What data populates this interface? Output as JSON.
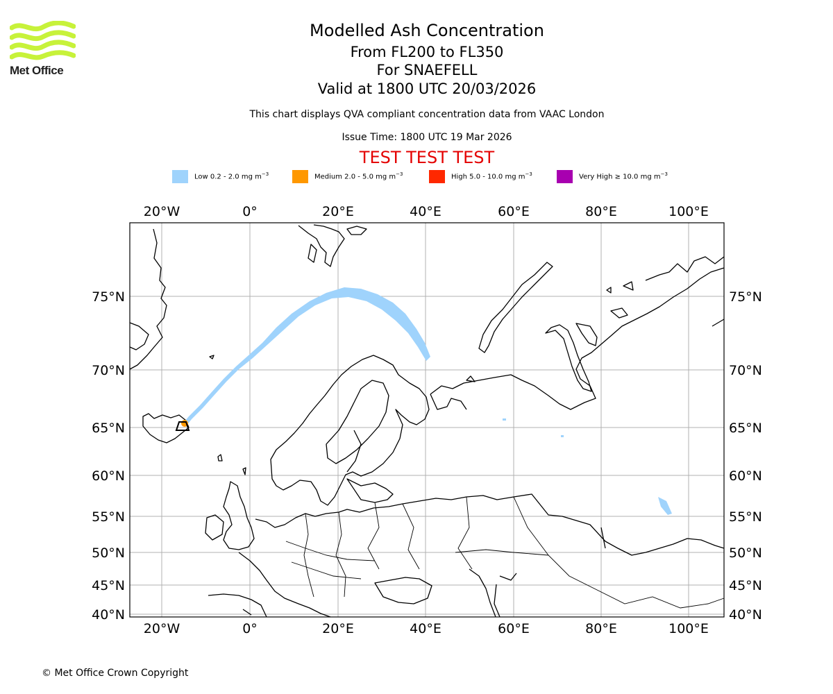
{
  "logo": {
    "text": "Met Office",
    "color": "#c7f23a"
  },
  "header": {
    "title": "Modelled Ash Concentration",
    "level_range": "From FL200 to FL350",
    "volcano": "For SNAEFELL",
    "valid": "Valid at 1800 UTC 20/03/2026",
    "subtitle": "This chart displays QVA compliant concentration data from VAAC London",
    "issue_time": "Issue Time: 1800 UTC 19 Mar 2026",
    "test_text": "TEST TEST TEST",
    "test_color": "#e40000"
  },
  "legend": [
    {
      "label": "Low 0.2 - 2.0 mg m",
      "exp": "−3",
      "color": "#9fd3fc"
    },
    {
      "label": "Medium 2.0 - 5.0 mg m",
      "exp": "−3",
      "color": "#ff9800"
    },
    {
      "label": "High 5.0 - 10.0 mg m",
      "exp": "−3",
      "color": "#ff2800"
    },
    {
      "label": "Very High  ≥  10.0 mg m",
      "exp": "−3",
      "color": "#a800b0"
    }
  ],
  "map": {
    "lon_ticks": [
      "20°W",
      "0°",
      "20°E",
      "40°E",
      "60°E",
      "80°E",
      "100°E"
    ],
    "lat_ticks": [
      "75°N",
      "70°N",
      "65°N",
      "60°N",
      "55°N",
      "50°N",
      "45°N",
      "40°N"
    ],
    "extent": {
      "lon": [
        -27,
        108
      ],
      "lat": [
        39.5,
        80
      ]
    },
    "grid": true,
    "ash_plume": {
      "concentration_class": "Low",
      "centerline_lonlat": [
        [
          -15.2,
          64.8
        ],
        [
          -12,
          66.5
        ],
        [
          -7,
          68.5
        ],
        [
          0,
          70.5
        ],
        [
          8,
          72.6
        ],
        [
          15,
          74.3
        ],
        [
          22,
          75.0
        ],
        [
          28,
          74.2
        ],
        [
          34,
          73.0
        ],
        [
          39.5,
          71.2
        ]
      ],
      "small_patches_lonlat": [
        [
          58.5,
          65.0
        ],
        [
          71.5,
          64.2
        ],
        [
          94.5,
          56.0
        ]
      ]
    }
  },
  "footer": {
    "copyright": "© Met Office Crown Copyright"
  }
}
